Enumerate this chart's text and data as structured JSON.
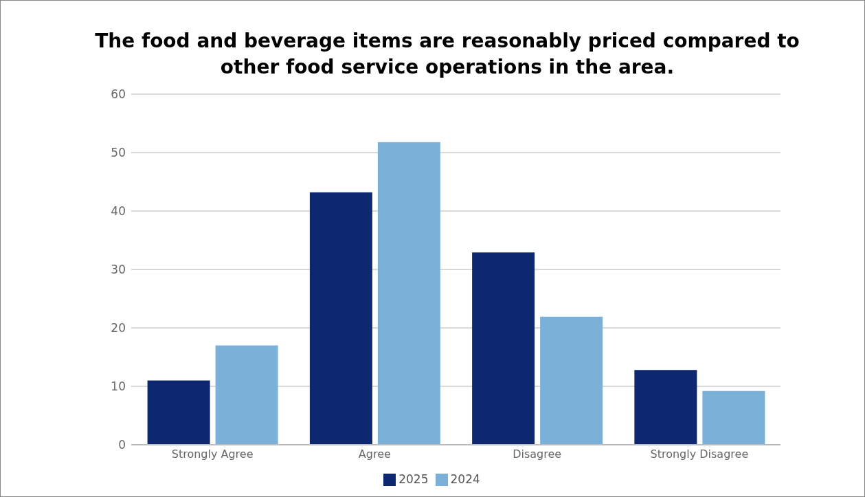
{
  "chart_data": {
    "type": "bar",
    "title": "The food and beverage items are reasonably priced compared to other food service operations in the area.",
    "categories": [
      "Strongly Agree",
      "Agree",
      "Disagree",
      "Strongly Disagree"
    ],
    "series": [
      {
        "name": "2025",
        "color": "#0d2870",
        "values": [
          11,
          43.2,
          32.9,
          12.8
        ]
      },
      {
        "name": "2024",
        "color": "#7bb1d9",
        "values": [
          17,
          51.8,
          21.9,
          9.2
        ]
      }
    ],
    "ylim": [
      0,
      60
    ],
    "yticks": [
      0,
      10,
      20,
      30,
      40,
      50,
      60
    ],
    "grid": "y",
    "legend": "bottom"
  }
}
